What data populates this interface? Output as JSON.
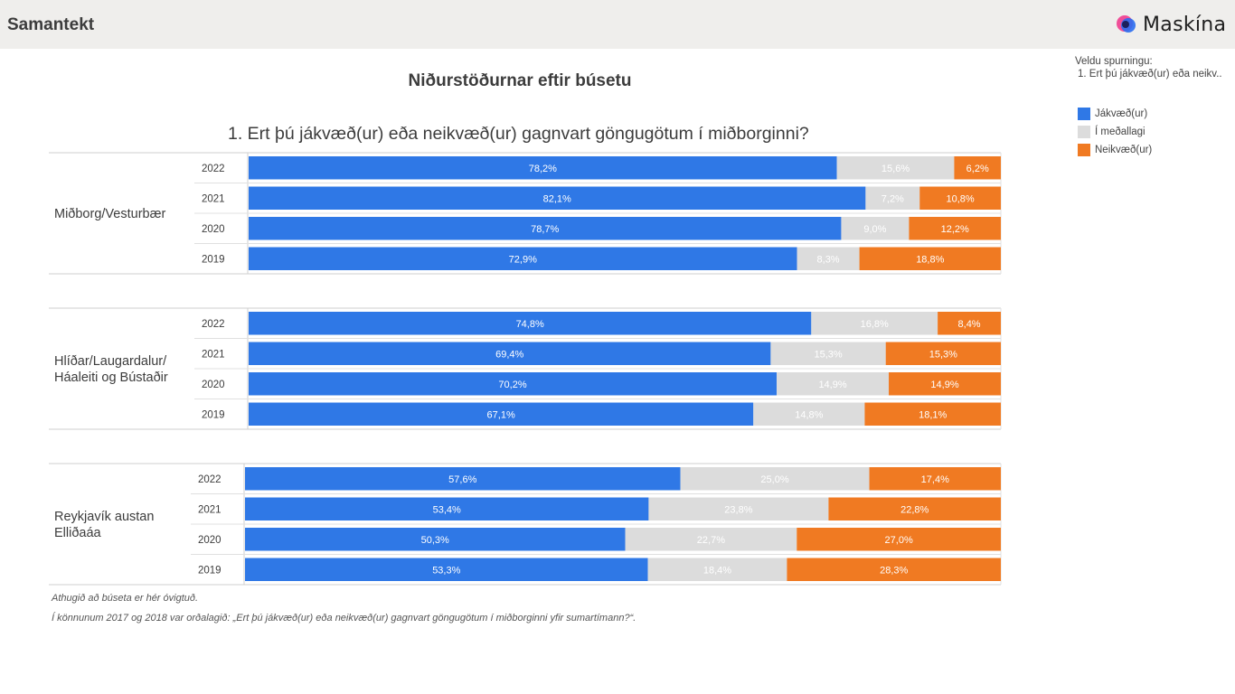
{
  "header": {
    "title": "Samantekt",
    "logo_text": "Maskína"
  },
  "page_title": "Niðurstöðurnar eftir búsetu",
  "side_panel": {
    "select_label": "Veldu spurningu:",
    "selected_value": "1. Ert þú jákvæð(ur) eða neikv..",
    "legend": [
      {
        "label": "Jákvæð(ur)",
        "color": "#2f78e6"
      },
      {
        "label": "Í meðallagi",
        "color": "#dcdcdc"
      },
      {
        "label": "Neikvæð(ur)",
        "color": "#f07a22"
      }
    ]
  },
  "footnotes": [
    "Athugið að búseta er hér óvigtuð.",
    "Í könnunum 2017 og 2018 var orðalagið: „Ert þú jákvæð(ur) eða neikvæð(ur) gagnvart göngugötum í miðborginni yfir sumartímann?“."
  ],
  "chart_data": {
    "type": "bar",
    "orientation": "horizontal-stacked-100",
    "title": "1. Ert þú jákvæð(ur) eða neikvæð(ur) gagnvart göngugötum í miðborginni?",
    "series_names": [
      "Jákvæð(ur)",
      "Í meðallagi",
      "Neikvæð(ur)"
    ],
    "colors": [
      "#2f78e6",
      "#dcdcdc",
      "#f07a22"
    ],
    "groups": [
      {
        "name": "Miðborg/Vesturbær",
        "rows": [
          {
            "year": "2022",
            "values": [
              78.2,
              15.6,
              6.2
            ],
            "labels": [
              "78,2%",
              "15,6%",
              "6,2%"
            ]
          },
          {
            "year": "2021",
            "values": [
              82.1,
              7.2,
              10.8
            ],
            "labels": [
              "82,1%",
              "7,2%",
              "10,8%"
            ]
          },
          {
            "year": "2020",
            "values": [
              78.7,
              9.0,
              12.2
            ],
            "labels": [
              "78,7%",
              "9,0%",
              "12,2%"
            ]
          },
          {
            "year": "2019",
            "values": [
              72.9,
              8.3,
              18.8
            ],
            "labels": [
              "72,9%",
              "8,3%",
              "18,8%"
            ]
          }
        ]
      },
      {
        "name": "Hlíðar/Laugardalur/ Háaleiti og Bústaðir",
        "name_lines": [
          "Hlíðar/Laugardalur/",
          "Háaleiti og Bústaðir"
        ],
        "rows": [
          {
            "year": "2022",
            "values": [
              74.8,
              16.8,
              8.4
            ],
            "labels": [
              "74,8%",
              "16,8%",
              "8,4%"
            ]
          },
          {
            "year": "2021",
            "values": [
              69.4,
              15.3,
              15.3
            ],
            "labels": [
              "69,4%",
              "15,3%",
              "15,3%"
            ]
          },
          {
            "year": "2020",
            "values": [
              70.2,
              14.9,
              14.9
            ],
            "labels": [
              "70,2%",
              "14,9%",
              "14,9%"
            ]
          },
          {
            "year": "2019",
            "values": [
              67.1,
              14.8,
              18.1
            ],
            "labels": [
              "67,1%",
              "14,8%",
              "18,1%"
            ]
          }
        ]
      },
      {
        "name": "Reykjavík austan Elliðaáa",
        "name_lines": [
          "Reykjavík austan",
          "Elliðaáa"
        ],
        "rows": [
          {
            "year": "2022",
            "values": [
              57.6,
              25.0,
              17.4
            ],
            "labels": [
              "57,6%",
              "25,0%",
              "17,4%"
            ]
          },
          {
            "year": "2021",
            "values": [
              53.4,
              23.8,
              22.8
            ],
            "labels": [
              "53,4%",
              "23,8%",
              "22,8%"
            ]
          },
          {
            "year": "2020",
            "values": [
              50.3,
              22.7,
              27.0
            ],
            "labels": [
              "50,3%",
              "22,7%",
              "27,0%"
            ]
          },
          {
            "year": "2019",
            "values": [
              53.3,
              18.4,
              28.3
            ],
            "labels": [
              "53,3%",
              "18,4%",
              "28,3%"
            ]
          }
        ]
      }
    ]
  }
}
